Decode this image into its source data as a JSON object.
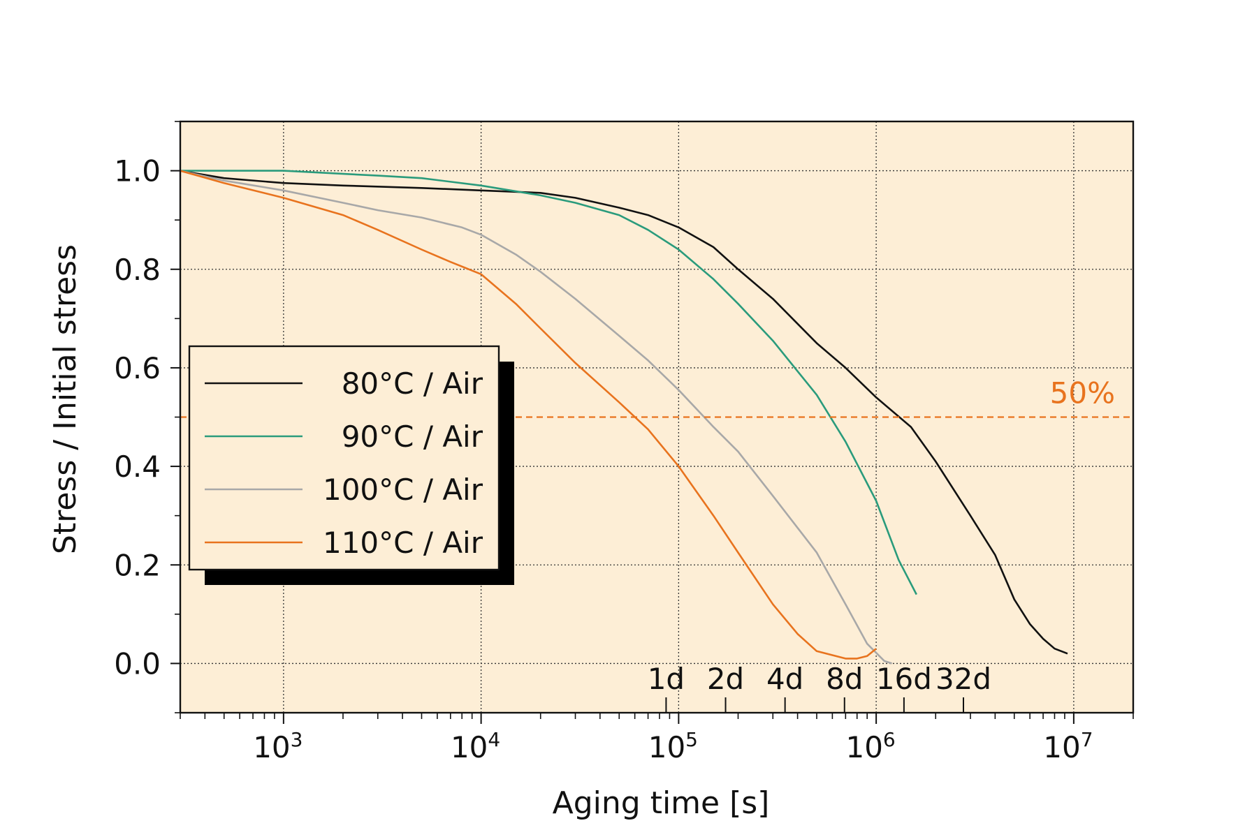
{
  "chart_data": {
    "type": "line",
    "x_scale": "log",
    "xlabel": "Aging time [s]",
    "ylabel": "Stress / Initial stress",
    "xlim": [
      300,
      20000000
    ],
    "ylim": [
      -0.1,
      1.1
    ],
    "grid": true,
    "background": "#fdeed6",
    "x_ticks": [
      {
        "value": 1000,
        "base": "10",
        "exp": "3"
      },
      {
        "value": 10000,
        "base": "10",
        "exp": "4"
      },
      {
        "value": 100000,
        "base": "10",
        "exp": "5"
      },
      {
        "value": 1000000,
        "base": "10",
        "exp": "6"
      },
      {
        "value": 10000000,
        "base": "10",
        "exp": "7"
      }
    ],
    "y_ticks": [
      {
        "value": 0.0,
        "label": "0.0"
      },
      {
        "value": 0.2,
        "label": "0.2"
      },
      {
        "value": 0.4,
        "label": "0.4"
      },
      {
        "value": 0.6,
        "label": "0.6"
      },
      {
        "value": 0.8,
        "label": "0.8"
      },
      {
        "value": 1.0,
        "label": "1.0"
      }
    ],
    "day_markers": [
      {
        "label": "1d",
        "value": 86400
      },
      {
        "label": "2d",
        "value": 172800
      },
      {
        "label": "4d",
        "value": 345600
      },
      {
        "label": "8d",
        "value": 691200
      },
      {
        "label": "16d",
        "value": 1382400
      },
      {
        "label": "32d",
        "value": 2764800
      }
    ],
    "reference_line": {
      "label": "50%",
      "y": 0.5,
      "color": "#e8731e"
    },
    "legend_position": "left-middle",
    "series": [
      {
        "name": "80°C / Air",
        "color": "#111111",
        "points": [
          [
            300,
            1.0
          ],
          [
            500,
            0.985
          ],
          [
            1000,
            0.975
          ],
          [
            2000,
            0.97
          ],
          [
            5000,
            0.965
          ],
          [
            10000,
            0.96
          ],
          [
            20000,
            0.955
          ],
          [
            30000,
            0.945
          ],
          [
            50000,
            0.925
          ],
          [
            70000,
            0.91
          ],
          [
            100000,
            0.885
          ],
          [
            150000,
            0.845
          ],
          [
            200000,
            0.8
          ],
          [
            300000,
            0.74
          ],
          [
            500000,
            0.65
          ],
          [
            700000,
            0.6
          ],
          [
            1000000,
            0.54
          ],
          [
            1500000,
            0.48
          ],
          [
            2000000,
            0.41
          ],
          [
            3000000,
            0.3
          ],
          [
            4000000,
            0.22
          ],
          [
            5000000,
            0.13
          ],
          [
            6000000,
            0.08
          ],
          [
            7000000,
            0.05
          ],
          [
            8000000,
            0.03
          ],
          [
            9300000,
            0.02
          ]
        ]
      },
      {
        "name": "90°C / Air",
        "color": "#2a9b7c",
        "points": [
          [
            300,
            1.0
          ],
          [
            1000,
            1.0
          ],
          [
            3000,
            0.99
          ],
          [
            5000,
            0.985
          ],
          [
            10000,
            0.97
          ],
          [
            20000,
            0.95
          ],
          [
            30000,
            0.935
          ],
          [
            50000,
            0.91
          ],
          [
            70000,
            0.88
          ],
          [
            100000,
            0.84
          ],
          [
            150000,
            0.78
          ],
          [
            200000,
            0.73
          ],
          [
            300000,
            0.655
          ],
          [
            500000,
            0.545
          ],
          [
            700000,
            0.45
          ],
          [
            1000000,
            0.33
          ],
          [
            1300000,
            0.21
          ],
          [
            1600000,
            0.14
          ]
        ]
      },
      {
        "name": "100°C / Air",
        "color": "#a8a8a8",
        "points": [
          [
            300,
            1.0
          ],
          [
            500,
            0.98
          ],
          [
            1000,
            0.96
          ],
          [
            2000,
            0.935
          ],
          [
            3000,
            0.92
          ],
          [
            5000,
            0.905
          ],
          [
            8000,
            0.885
          ],
          [
            10000,
            0.87
          ],
          [
            15000,
            0.83
          ],
          [
            20000,
            0.795
          ],
          [
            30000,
            0.74
          ],
          [
            50000,
            0.665
          ],
          [
            70000,
            0.615
          ],
          [
            100000,
            0.555
          ],
          [
            150000,
            0.48
          ],
          [
            200000,
            0.43
          ],
          [
            300000,
            0.34
          ],
          [
            500000,
            0.225
          ],
          [
            700000,
            0.12
          ],
          [
            900000,
            0.04
          ],
          [
            1100000,
            0.005
          ],
          [
            1200000,
            0.0
          ]
        ]
      },
      {
        "name": "110°C / Air",
        "color": "#e8731e",
        "points": [
          [
            300,
            1.0
          ],
          [
            500,
            0.975
          ],
          [
            1000,
            0.945
          ],
          [
            2000,
            0.91
          ],
          [
            3000,
            0.88
          ],
          [
            5000,
            0.84
          ],
          [
            7000,
            0.815
          ],
          [
            10000,
            0.79
          ],
          [
            15000,
            0.73
          ],
          [
            20000,
            0.68
          ],
          [
            30000,
            0.61
          ],
          [
            50000,
            0.53
          ],
          [
            70000,
            0.475
          ],
          [
            100000,
            0.4
          ],
          [
            150000,
            0.3
          ],
          [
            200000,
            0.225
          ],
          [
            300000,
            0.12
          ],
          [
            400000,
            0.06
          ],
          [
            500000,
            0.025
          ],
          [
            700000,
            0.01
          ],
          [
            800000,
            0.01
          ],
          [
            900000,
            0.015
          ],
          [
            1000000,
            0.03
          ]
        ]
      }
    ]
  }
}
